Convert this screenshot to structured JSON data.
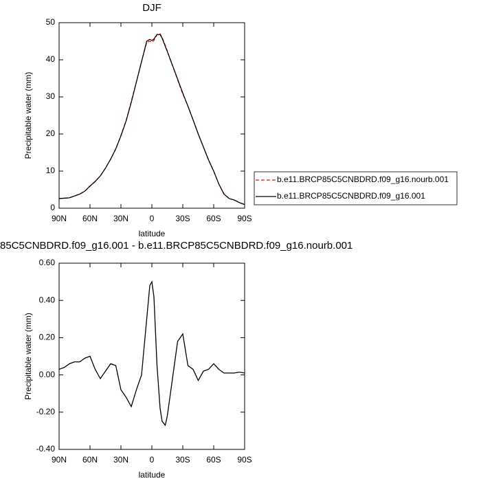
{
  "chart_data": [
    {
      "type": "line",
      "title": "DJF",
      "xlabel": "latitude",
      "ylabel": "Precipitable water (mm)",
      "x": [
        90,
        85,
        80,
        75,
        70,
        65,
        60,
        55,
        50,
        45,
        40,
        35,
        30,
        25,
        20,
        15,
        10,
        5,
        2,
        0,
        -2,
        -5,
        -8,
        -10,
        -13,
        -15,
        -20,
        -25,
        -30,
        -35,
        -40,
        -45,
        -50,
        -55,
        -60,
        -65,
        -70,
        -75,
        -80,
        -85,
        -90
      ],
      "series": [
        {
          "name": "b.e11.BRCP85C5CNBDRD.f09_g16.nourb.001",
          "color": "#ff0000",
          "dashed": true,
          "values": [
            2.6,
            2.7,
            2.8,
            3.3,
            3.8,
            4.6,
            5.9,
            7.2,
            8.7,
            10.8,
            13.2,
            16.0,
            19.6,
            23.6,
            28.7,
            34.1,
            39.5,
            44.7,
            45.0,
            44.7,
            45.2,
            46.8,
            47.0,
            46.0,
            43.9,
            42.4,
            38.5,
            34.6,
            30.8,
            27.5,
            23.8,
            20.0,
            16.5,
            13.0,
            9.9,
            6.5,
            3.8,
            2.6,
            2.2,
            1.5,
            1.0
          ]
        },
        {
          "name": "b.e11.BRCP85C5CNBDRD.f09_g16.001",
          "color": "#000000",
          "dashed": false,
          "values": [
            2.6,
            2.7,
            2.8,
            3.3,
            3.8,
            4.6,
            6.0,
            7.2,
            8.7,
            10.8,
            13.2,
            16.0,
            19.5,
            23.5,
            28.5,
            34.0,
            39.5,
            45.0,
            45.5,
            45.2,
            45.6,
            46.8,
            46.8,
            45.8,
            43.6,
            42.2,
            38.5,
            34.8,
            31.0,
            27.5,
            23.8,
            20.0,
            16.5,
            13.0,
            10.0,
            6.5,
            3.8,
            2.6,
            2.2,
            1.5,
            1.0
          ]
        }
      ],
      "xlim": [
        90,
        -90
      ],
      "xticks": [
        {
          "value": 90,
          "label": "90N"
        },
        {
          "value": 60,
          "label": "60N"
        },
        {
          "value": 30,
          "label": "30N"
        },
        0,
        {
          "value": -30,
          "label": "30S"
        },
        {
          "value": -60,
          "label": "60S"
        },
        {
          "value": -90,
          "label": "90S"
        }
      ],
      "ylim": [
        0,
        50
      ],
      "yticks": [
        0,
        10,
        20,
        30,
        40,
        50
      ],
      "legend": "right"
    },
    {
      "type": "line",
      "title": "85C5CNBDRD.f09_g16.001 - b.e11.BRCP85C5CNBDRD.f09_g16.nourb.001",
      "xlabel": "latitude",
      "ylabel": "Precipitable water (mm)",
      "x": [
        90,
        85,
        80,
        75,
        70,
        65,
        60,
        55,
        50,
        45,
        40,
        35,
        30,
        25,
        20,
        15,
        10,
        5,
        2,
        0,
        -2,
        -5,
        -8,
        -10,
        -13,
        -15,
        -20,
        -25,
        -30,
        -35,
        -40,
        -45,
        -50,
        -55,
        -60,
        -65,
        -70,
        -75,
        -80,
        -85,
        -90
      ],
      "values": [
        0.03,
        0.04,
        0.06,
        0.07,
        0.07,
        0.09,
        0.1,
        0.03,
        -0.02,
        0.02,
        0.06,
        0.05,
        -0.08,
        -0.12,
        -0.17,
        -0.08,
        0.0,
        0.3,
        0.48,
        0.5,
        0.42,
        0.05,
        -0.18,
        -0.25,
        -0.27,
        -0.22,
        -0.02,
        0.18,
        0.22,
        0.05,
        0.03,
        -0.03,
        0.02,
        0.03,
        0.06,
        0.03,
        0.01,
        0.01,
        0.01,
        0.015,
        0.01
      ],
      "color": "#000000",
      "xlim": [
        90,
        -90
      ],
      "xticks": [
        {
          "value": 90,
          "label": "90N"
        },
        {
          "value": 60,
          "label": "60N"
        },
        {
          "value": 30,
          "label": "30N"
        },
        0,
        {
          "value": -30,
          "label": "30S"
        },
        {
          "value": -60,
          "label": "60S"
        },
        {
          "value": -90,
          "label": "90S"
        }
      ],
      "ylim": [
        -0.4,
        0.6
      ],
      "yticks": [
        {
          "value": -0.4,
          "label": "-0.40"
        },
        {
          "value": -0.2,
          "label": "-0.20"
        },
        {
          "value": 0,
          "label": "0.00"
        },
        {
          "value": 0.2,
          "label": "0.20"
        },
        {
          "value": 0.4,
          "label": "0.40"
        },
        {
          "value": 0.6,
          "label": "0.60"
        }
      ]
    }
  ]
}
